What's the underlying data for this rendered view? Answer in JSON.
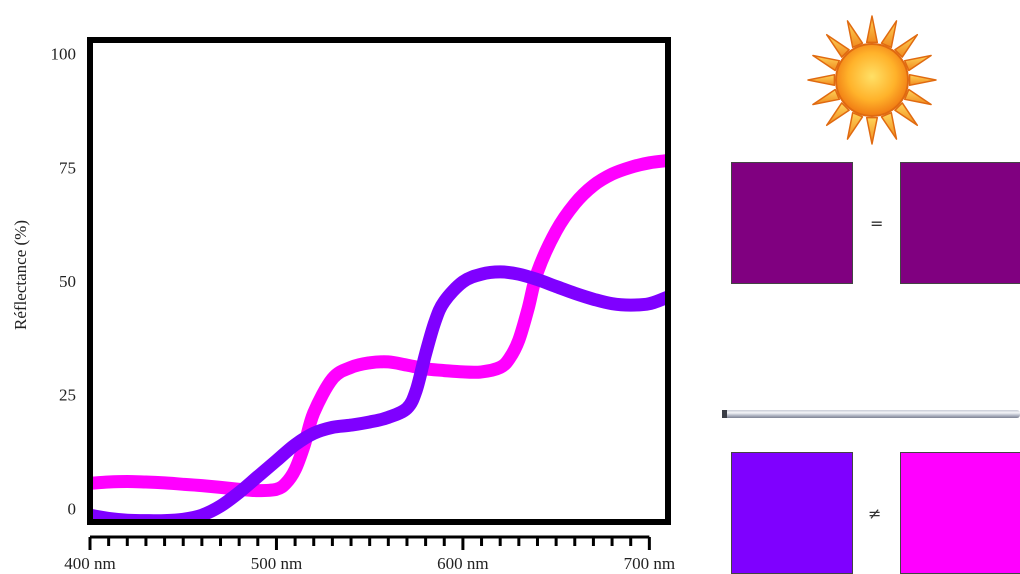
{
  "chart_data": {
    "type": "line",
    "title": "",
    "xlabel": "",
    "ylabel": "Réflectance (%)",
    "xlim": [
      400,
      710
    ],
    "ylim": [
      -3,
      103
    ],
    "x_ticks": [
      {
        "value": 400,
        "label": "400 nm"
      },
      {
        "value": 500,
        "label": "500 nm"
      },
      {
        "value": 600,
        "label": "600 nm"
      },
      {
        "value": 700,
        "label": "700 nm"
      }
    ],
    "x_minor_step": 10,
    "y_ticks": [
      {
        "value": 0,
        "label": "0"
      },
      {
        "value": 25,
        "label": "25"
      },
      {
        "value": 50,
        "label": "50"
      },
      {
        "value": 75,
        "label": "75"
      },
      {
        "value": 100,
        "label": "100"
      }
    ],
    "grid": false,
    "series": [
      {
        "color": "#ff00ff",
        "x": [
          400,
          410,
          420,
          430,
          440,
          450,
          460,
          470,
          480,
          490,
          500,
          505,
          510,
          515,
          520,
          530,
          540,
          550,
          560,
          570,
          580,
          590,
          600,
          610,
          620,
          625,
          630,
          635,
          640,
          650,
          660,
          670,
          680,
          690,
          700,
          710
        ],
        "y": [
          5.5,
          5.8,
          5.9,
          5.8,
          5.6,
          5.3,
          5.0,
          4.6,
          4.2,
          3.9,
          4.2,
          5.5,
          8.5,
          14,
          21,
          28.5,
          31,
          32,
          32.2,
          31.5,
          30.7,
          30.3,
          30,
          30,
          31,
          33,
          37,
          44,
          52,
          61,
          67,
          71,
          73.5,
          75,
          76,
          76.5
        ]
      },
      {
        "color": "#7f00ff",
        "x": [
          400,
          410,
          420,
          430,
          440,
          450,
          460,
          470,
          480,
          490,
          500,
          510,
          520,
          530,
          540,
          550,
          560,
          570,
          575,
          580,
          585,
          590,
          600,
          610,
          620,
          630,
          640,
          650,
          660,
          670,
          680,
          690,
          700,
          710
        ],
        "y": [
          -1.5,
          -2.2,
          -2.6,
          -2.7,
          -2.7,
          -2.4,
          -1.5,
          0.5,
          3.5,
          7,
          10.5,
          14,
          16.5,
          17.8,
          18.3,
          19,
          20,
          22,
          26,
          34,
          41,
          45.5,
          49.8,
          51.5,
          52,
          51.5,
          50.3,
          48.8,
          47.3,
          46,
          45,
          44.7,
          45,
          46.5
        ]
      }
    ]
  },
  "swatches": {
    "top": {
      "left_color": "#800080",
      "right_color": "#800080",
      "symbol": "="
    },
    "bottom": {
      "left_color": "#7f00ff",
      "right_color": "#ff00ff",
      "symbol": "≠"
    }
  },
  "icons": {
    "light_top": "sun-icon",
    "light_bottom": "fluorescent-tube-icon"
  }
}
